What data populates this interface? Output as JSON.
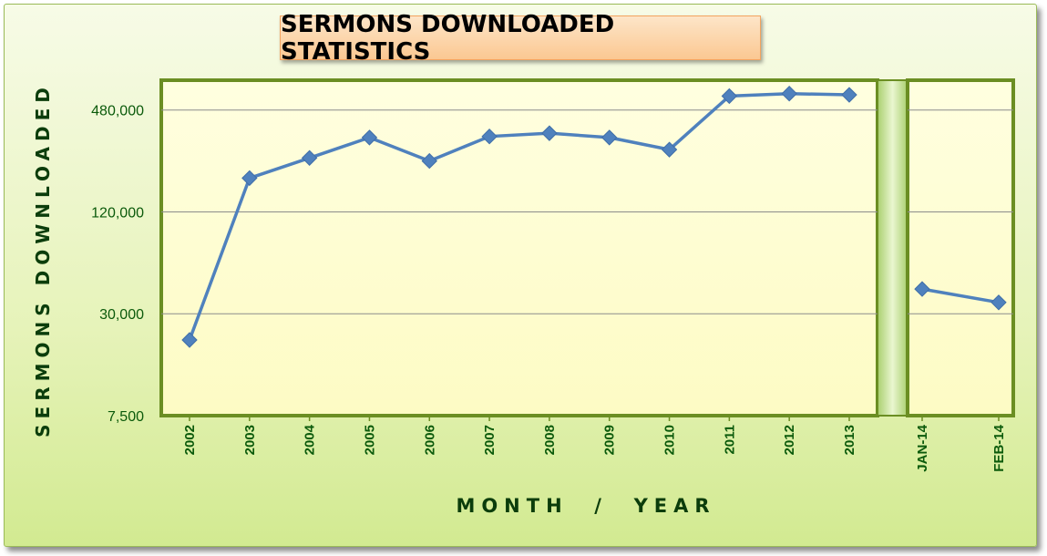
{
  "chart_data": {
    "type": "line",
    "title": "SERMONS DOWNLOADED STATISTICS",
    "xlabel": "MONTH  /  YEAR",
    "ylabel": "SERMONS DOWNLOADED",
    "y_scale": "log",
    "ylim": [
      7500,
      720000
    ],
    "yticks": [
      7500,
      30000,
      120000,
      480000
    ],
    "ytick_labels": [
      "7,500",
      "30,000",
      "120,000",
      "480,000"
    ],
    "grid": true,
    "panels": [
      {
        "categories": [
          "2002",
          "2003",
          "2004",
          "2005",
          "2006",
          "2007",
          "2008",
          "2009",
          "2010",
          "2011",
          "2012",
          "2013"
        ],
        "values": [
          21000,
          190000,
          250000,
          330000,
          240000,
          335000,
          350000,
          330000,
          280000,
          580000,
          600000,
          590000
        ]
      },
      {
        "categories": [
          "JAN-14",
          "FEB-14"
        ],
        "values": [
          42000,
          35000
        ]
      }
    ],
    "colors": {
      "line": "#4f81bd",
      "plot_bg": "#ffffd4",
      "frame_bg": "#e6f3b9",
      "panel_border": "#6b8e23",
      "axis_text": "#0b5a0b",
      "title_bg": "#fbc892"
    }
  }
}
